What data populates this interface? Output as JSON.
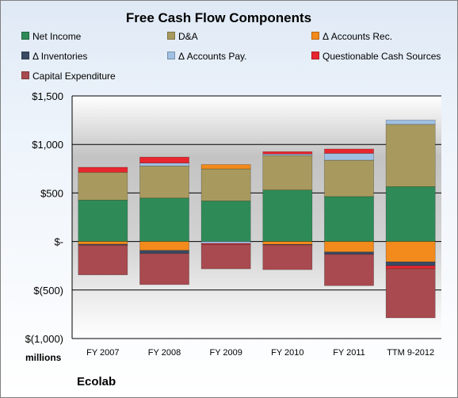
{
  "colors": {
    "net_income": "#2e8b57",
    "da": "#a89a5e",
    "accounts_rec": "#f28a1c",
    "inventories": "#3a4a63",
    "accounts_pay": "#9fc0e2",
    "questionable": "#e8262e",
    "capex": "#a84a4f"
  },
  "footer": {
    "units": "millions",
    "company": "Ecolab"
  },
  "chart_data": {
    "type": "bar",
    "stacked": true,
    "title": "Free Cash Flow Components",
    "categories": [
      "FY 2007",
      "FY 2008",
      "FY 2009",
      "FY 2010",
      "FY 2011",
      "TTM 9-2012"
    ],
    "ylim": [
      -1000,
      1500
    ],
    "yticks": [
      -1000,
      -500,
      0,
      500,
      1000,
      1500
    ],
    "ytick_labels": [
      "$(1,000)",
      "$(500)",
      "$-",
      "$500",
      "$1,000",
      "$1,500"
    ],
    "grid": true,
    "legend": "top",
    "series": [
      {
        "name": "Net Income",
        "key": "net_income",
        "values": [
          427,
          448,
          418,
          531,
          463,
          565
        ]
      },
      {
        "name": "D&A",
        "key": "da",
        "values": [
          286,
          330,
          330,
          355,
          375,
          642
        ]
      },
      {
        "name": "Δ Accounts Rec.",
        "key": "accounts_rec",
        "values": [
          -28,
          -92,
          45,
          -30,
          -108,
          -210
        ]
      },
      {
        "name": "Δ Inventories",
        "key": "inventories",
        "values": [
          -10,
          -32,
          0,
          -5,
          -25,
          -40
        ]
      },
      {
        "name": "Δ Accounts Pay.",
        "key": "accounts_pay",
        "values": [
          0,
          30,
          -20,
          15,
          70,
          45
        ]
      },
      {
        "name": "Questionable Cash Sources",
        "key": "questionable",
        "values": [
          52,
          62,
          -10,
          25,
          45,
          -30
        ]
      },
      {
        "name": "Capital Expenditure",
        "key": "capex",
        "values": [
          -306,
          -320,
          -252,
          -255,
          -322,
          -507
        ]
      }
    ]
  }
}
